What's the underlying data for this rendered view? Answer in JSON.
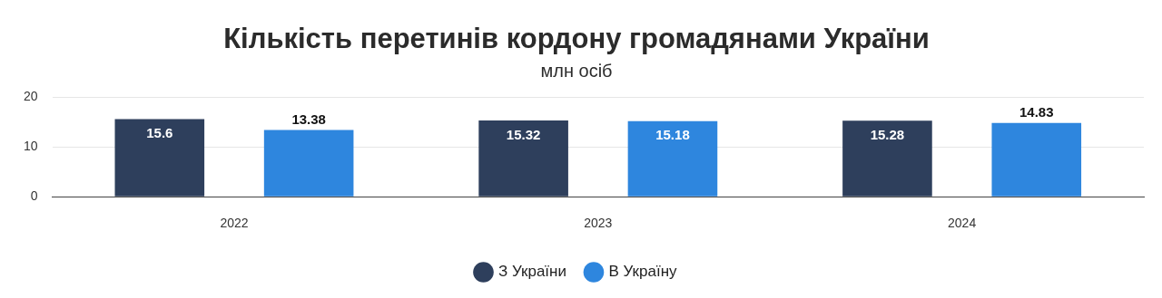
{
  "chart_data": {
    "type": "bar",
    "title": "Кількість перетинів кордону громадянами України",
    "subtitle": "млн осіб",
    "categories": [
      "2022",
      "2023",
      "2024"
    ],
    "series": [
      {
        "name": "З України",
        "color": "#2e3f5c",
        "values": [
          15.6,
          15.32,
          15.28
        ]
      },
      {
        "name": "В Україну",
        "color": "#2e86de",
        "values": [
          13.38,
          15.18,
          14.83
        ]
      }
    ],
    "ylim": [
      0,
      20
    ],
    "yticks": [
      0,
      10,
      20
    ],
    "grid": "y",
    "legend": "bottom",
    "data_labels": true
  }
}
